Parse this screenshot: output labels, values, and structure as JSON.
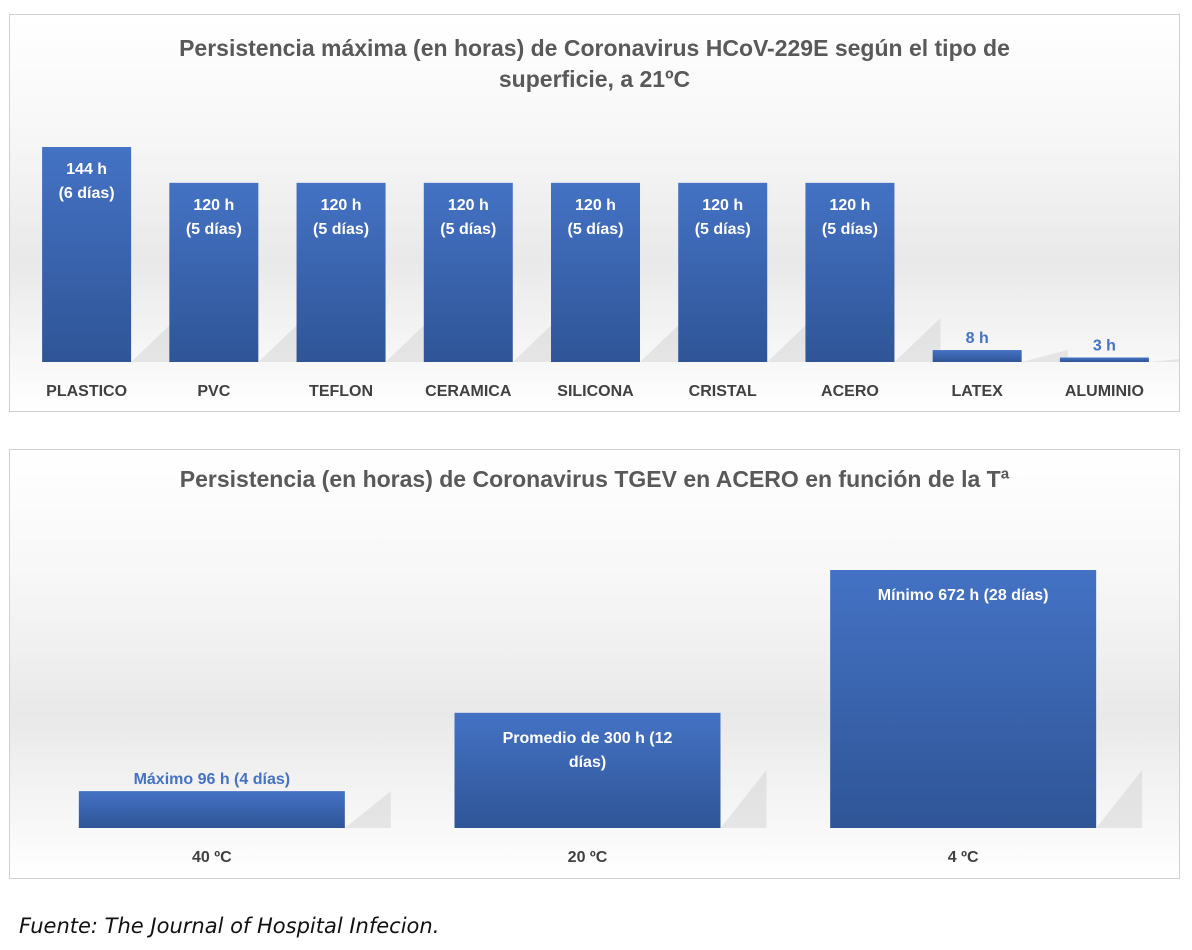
{
  "colors": {
    "bar": "#4472c4",
    "bar_dark": "#2f5597",
    "label_inside": "#ffffff",
    "label_outside": "#4472c4",
    "axis_text": "#404040",
    "title": "#595959"
  },
  "chart_data": [
    {
      "type": "bar",
      "title": "Persistencia máxima (en horas)  de Coronavirus HCoV-229E según el tipo de superficie, a 21ºC",
      "categories": [
        "PLASTICO",
        "PVC",
        "TEFLON",
        "CERAMICA",
        "SILICONA",
        "CRISTAL",
        "ACERO",
        "LATEX",
        "ALUMINIO"
      ],
      "values": [
        144,
        120,
        120,
        120,
        120,
        120,
        120,
        8,
        3
      ],
      "data_labels": [
        [
          "144 h",
          "(6 días)"
        ],
        [
          "120 h",
          "(5 días)"
        ],
        [
          "120 h",
          "(5 días)"
        ],
        [
          "120 h",
          "(5 días)"
        ],
        [
          "120 h",
          "(5 días)"
        ],
        [
          "120 h",
          "(5 días)"
        ],
        [
          "120 h",
          "(5 días)"
        ],
        [
          "8 h"
        ],
        [
          "3 h"
        ]
      ],
      "ylim": [
        0,
        144
      ],
      "grid": false,
      "legend": "none"
    },
    {
      "type": "bar",
      "title": "Persistencia (en horas) de Coronavirus TGEV en ACERO en función de la Tª",
      "categories": [
        "40 ºC",
        "20 ºC",
        "4 ºC"
      ],
      "values": [
        96,
        300,
        672
      ],
      "data_labels": [
        [
          "Máximo 96 h  (4 días)"
        ],
        [
          "Promedio de 300 h (12",
          "días)"
        ],
        [
          "Mínimo 672 h (28 días)"
        ]
      ],
      "ylim": [
        0,
        672
      ],
      "grid": false,
      "legend": "none"
    }
  ],
  "source_note": "Fuente: The Journal of Hospital Infecion."
}
